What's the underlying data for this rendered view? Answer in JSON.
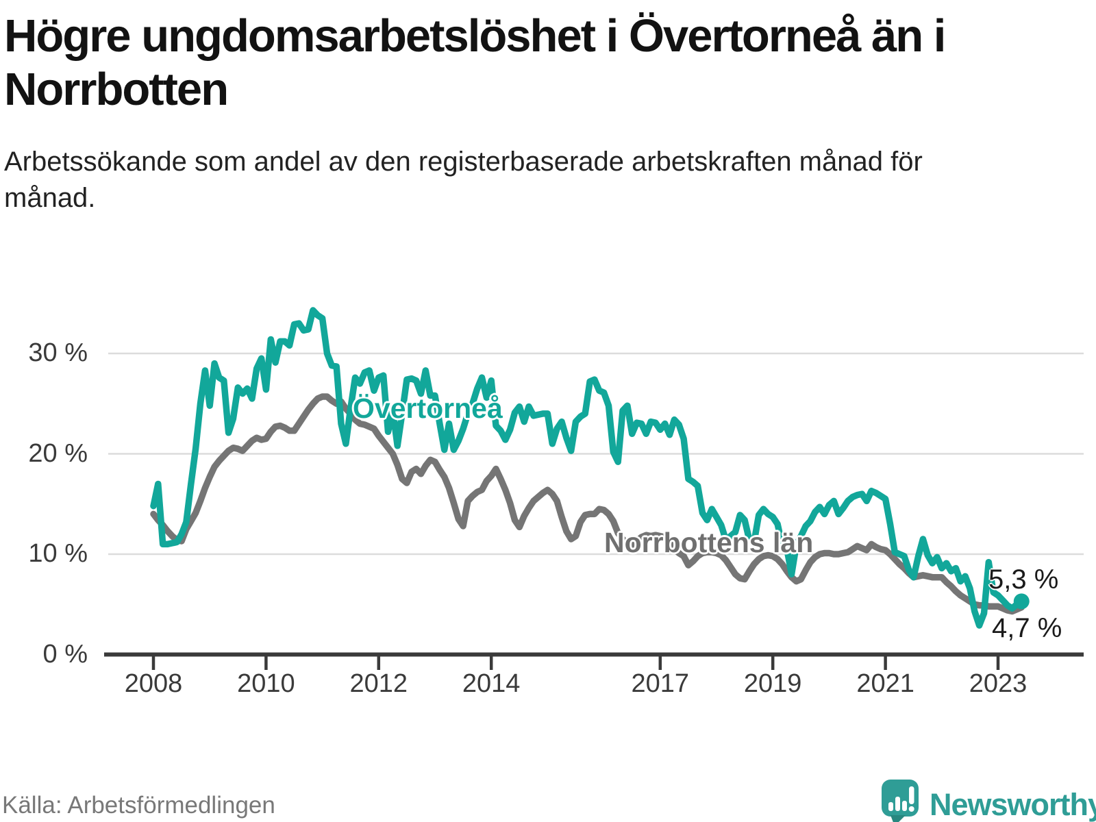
{
  "title": "Högre ungdomsarbetslöshet i Övertorneå än i Norrbotten",
  "subtitle": "Arbetssökande som andel av den registerbaserade arbetskraften månad för månad.",
  "source": "Källa: Arbetsförmedlingen",
  "branding": {
    "name": "Newsworthy"
  },
  "colors": {
    "series_overtornea": "#12a79a",
    "series_norrbotten": "#757575",
    "gridline": "#dcdcdc",
    "axis": "#3a3a3a",
    "logo_teal": "#2f9d96",
    "logo_tail": "#28877f"
  },
  "chart_data": {
    "type": "line",
    "title": "Högre ungdomsarbetslöshet i Övertorneå än i Norrbotten",
    "xlabel": "",
    "ylabel": "Arbetssökande som andel av den registerbaserade arbetskraften",
    "x_start": "2008-01",
    "x_end": "2023-06",
    "frequency": "monthly",
    "ylim": [
      0,
      36
    ],
    "grid": "horizontal",
    "legend_position": "inline-labels",
    "y_axis": {
      "ticks": [
        {
          "label": "0 %",
          "value": 0
        },
        {
          "label": "10 %",
          "value": 10
        },
        {
          "label": "20 %",
          "value": 20
        },
        {
          "label": "30 %",
          "value": 30
        }
      ]
    },
    "x_axis": {
      "ticks": [
        {
          "label": "2008",
          "year": 2008
        },
        {
          "label": "2010",
          "year": 2010
        },
        {
          "label": "2012",
          "year": 2012
        },
        {
          "label": "2014",
          "year": 2014
        },
        {
          "label": "2017",
          "year": 2017
        },
        {
          "label": "2019",
          "year": 2019
        },
        {
          "label": "2021",
          "year": 2021
        },
        {
          "label": "2023",
          "year": 2023
        }
      ]
    },
    "series": [
      {
        "name": "Övertorneå",
        "color": "#12a79a",
        "end_label": "5,3 %",
        "end_value": 5.3,
        "values": [
          14.8,
          17.0,
          11.0,
          11.0,
          11.1,
          11.2,
          12.0,
          13.2,
          17.0,
          20.5,
          25.0,
          28.3,
          24.8,
          29.0,
          27.6,
          27.3,
          22.1,
          23.5,
          26.6,
          26.0,
          26.5,
          25.5,
          28.5,
          29.5,
          26.4,
          31.4,
          29.1,
          31.2,
          31.2,
          30.8,
          32.9,
          33.0,
          32.3,
          32.4,
          34.3,
          33.8,
          33.5,
          30.0,
          28.8,
          28.7,
          23.0,
          21.0,
          24.5,
          27.6,
          27.0,
          28.1,
          28.3,
          26.3,
          27.6,
          27.8,
          22.2,
          24.3,
          20.8,
          24.0,
          27.4,
          27.5,
          27.3,
          26.0,
          28.3,
          25.8,
          25.8,
          23.0,
          20.4,
          23.0,
          20.4,
          21.3,
          22.5,
          24.0,
          25.0,
          26.5,
          27.6,
          25.6,
          27.3,
          22.8,
          22.3,
          21.4,
          22.4,
          24.1,
          24.7,
          23.2,
          24.7,
          23.8,
          23.9,
          24.0,
          24.0,
          21.0,
          22.5,
          23.2,
          21.6,
          20.3,
          23.2,
          23.7,
          24.0,
          27.2,
          27.4,
          26.3,
          26.1,
          24.8,
          20.2,
          19.2,
          24.3,
          24.8,
          22.0,
          23.1,
          23.0,
          22.0,
          23.2,
          23.1,
          22.4,
          23.0,
          21.9,
          23.4,
          22.9,
          21.5,
          17.5,
          17.2,
          16.8,
          14.1,
          13.4,
          14.5,
          13.7,
          12.9,
          11.4,
          11.8,
          12.2,
          13.9,
          13.4,
          11.4,
          11.2,
          13.9,
          14.5,
          14.0,
          13.7,
          13.0,
          10.9,
          10.5,
          8.0,
          10.9,
          11.8,
          12.8,
          13.3,
          14.2,
          14.7,
          14.0,
          14.9,
          15.3,
          14.0,
          14.6,
          15.3,
          15.7,
          15.9,
          16.0,
          15.3,
          16.3,
          16.1,
          15.8,
          15.5,
          13.0,
          10.2,
          10.0,
          9.8,
          8.4,
          7.7,
          9.8,
          11.5,
          9.9,
          9.1,
          9.7,
          8.6,
          9.1,
          8.3,
          8.6,
          7.3,
          7.8,
          6.6,
          4.3,
          2.9,
          4.1,
          9.2,
          6.2,
          5.9,
          5.4,
          4.9,
          4.6,
          5.0,
          5.3
        ]
      },
      {
        "name": "Norrbottens län",
        "color": "#757575",
        "end_label": "4,7 %",
        "end_value": 4.7,
        "values": [
          14.0,
          13.4,
          12.9,
          12.3,
          11.8,
          11.4,
          11.3,
          12.5,
          13.3,
          14.1,
          15.3,
          16.6,
          17.7,
          18.7,
          19.3,
          19.8,
          20.3,
          20.6,
          20.5,
          20.3,
          20.8,
          21.3,
          21.6,
          21.4,
          21.5,
          22.2,
          22.7,
          22.8,
          22.6,
          22.3,
          22.3,
          23.0,
          23.7,
          24.4,
          25.0,
          25.5,
          25.7,
          25.7,
          25.3,
          25.0,
          25.2,
          24.5,
          24.0,
          23.4,
          23.0,
          22.9,
          22.7,
          22.5,
          21.8,
          21.2,
          20.6,
          20.0,
          18.9,
          17.5,
          17.1,
          18.2,
          18.5,
          18.0,
          18.8,
          19.4,
          19.2,
          18.4,
          17.7,
          16.6,
          15.1,
          13.5,
          12.8,
          15.3,
          15.8,
          16.2,
          16.4,
          17.3,
          17.8,
          18.5,
          17.5,
          16.4,
          15.1,
          13.4,
          12.7,
          13.8,
          14.6,
          15.3,
          15.7,
          16.1,
          16.4,
          16.0,
          15.3,
          13.7,
          12.3,
          11.5,
          11.8,
          13.2,
          13.9,
          14.0,
          14.0,
          14.5,
          14.4,
          14.0,
          13.3,
          12.1,
          11.5,
          11.0,
          10.9,
          11.3,
          11.7,
          11.9,
          11.8,
          11.9,
          11.8,
          11.7,
          11.2,
          10.5,
          10.1,
          9.8,
          8.9,
          9.3,
          9.8,
          10.1,
          10.2,
          10.2,
          10.1,
          9.9,
          9.4,
          8.7,
          8.0,
          7.6,
          7.5,
          8.3,
          9.0,
          9.5,
          9.8,
          9.9,
          9.8,
          9.5,
          9.0,
          8.3,
          7.7,
          7.3,
          7.5,
          8.4,
          9.2,
          9.7,
          10.0,
          10.1,
          10.1,
          10.0,
          10.0,
          10.1,
          10.2,
          10.5,
          10.8,
          10.6,
          10.4,
          11.0,
          10.7,
          10.5,
          10.4,
          10.0,
          9.5,
          9.0,
          8.6,
          8.1,
          7.7,
          7.8,
          7.9,
          7.8,
          7.7,
          7.7,
          7.7,
          7.2,
          6.8,
          6.3,
          5.9,
          5.6,
          5.3,
          5.0,
          4.9,
          4.9,
          4.8,
          4.8,
          4.8,
          4.6,
          4.4,
          4.3,
          4.5,
          4.7
        ]
      }
    ]
  }
}
